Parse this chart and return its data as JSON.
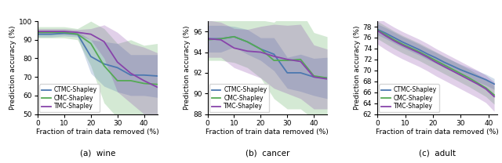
{
  "wine": {
    "x": [
      0,
      5,
      10,
      15,
      20,
      25,
      30,
      35,
      40,
      45
    ],
    "ctmc_mean": [
      93.0,
      93.0,
      93.5,
      93.0,
      81.0,
      77.0,
      75.0,
      71.0,
      71.0,
      70.5
    ],
    "ctmc_lo": [
      91.5,
      91.5,
      92.0,
      91.5,
      72.0,
      65.0,
      62.0,
      60.0,
      60.0,
      59.0
    ],
    "ctmc_hi": [
      94.5,
      94.5,
      95.0,
      94.5,
      90.0,
      89.0,
      88.0,
      82.0,
      82.0,
      82.0
    ],
    "cmc_mean": [
      94.0,
      94.0,
      94.0,
      93.0,
      88.0,
      76.0,
      68.0,
      68.0,
      66.5,
      66.0
    ],
    "cmc_lo": [
      91.0,
      91.0,
      91.0,
      90.0,
      76.0,
      56.0,
      48.0,
      46.0,
      46.0,
      44.0
    ],
    "cmc_hi": [
      97.0,
      97.0,
      97.0,
      96.0,
      100.0,
      96.0,
      88.0,
      90.0,
      87.0,
      88.0
    ],
    "tmc_mean": [
      94.5,
      94.5,
      94.5,
      94.0,
      93.0,
      89.0,
      78.0,
      72.0,
      68.0,
      64.5
    ],
    "tmc_lo": [
      93.0,
      93.0,
      93.0,
      92.5,
      90.0,
      80.0,
      62.0,
      56.0,
      50.0,
      46.0
    ],
    "tmc_hi": [
      96.0,
      96.0,
      96.0,
      95.5,
      96.0,
      98.0,
      94.0,
      88.0,
      86.0,
      83.0
    ],
    "ylabel": "Prediction accuracy (%)",
    "xlabel": "Fraction of train data removed (%)",
    "title": "(a)  wine",
    "xlim": [
      0,
      45
    ],
    "ylim": [
      50,
      100
    ],
    "yticks": [
      50,
      60,
      70,
      80,
      90,
      100
    ],
    "xticks": [
      0,
      10,
      20,
      30,
      40
    ]
  },
  "cancer": {
    "x": [
      0,
      5,
      10,
      15,
      20,
      25,
      30,
      35,
      40,
      45
    ],
    "ctmc_mean": [
      95.3,
      95.3,
      95.5,
      95.0,
      94.3,
      93.8,
      92.0,
      92.0,
      91.6,
      91.5
    ],
    "ctmc_lo": [
      94.0,
      94.0,
      94.5,
      93.8,
      93.2,
      92.2,
      90.5,
      90.2,
      89.8,
      89.5
    ],
    "ctmc_hi": [
      96.6,
      96.6,
      96.5,
      96.2,
      95.4,
      95.4,
      93.5,
      93.8,
      93.4,
      93.5
    ],
    "cmc_mean": [
      95.2,
      95.3,
      95.5,
      95.0,
      94.3,
      93.2,
      93.2,
      93.3,
      91.7,
      91.5
    ],
    "cmc_lo": [
      93.2,
      93.2,
      93.0,
      92.5,
      91.5,
      89.5,
      88.5,
      88.5,
      87.5,
      87.5
    ],
    "cmc_hi": [
      97.2,
      97.4,
      98.0,
      97.5,
      97.1,
      96.9,
      97.9,
      98.1,
      95.9,
      95.5
    ],
    "tmc_mean": [
      95.3,
      95.2,
      94.4,
      94.1,
      94.0,
      93.6,
      93.3,
      93.1,
      91.6,
      91.4
    ],
    "tmc_lo": [
      93.5,
      93.5,
      92.5,
      92.0,
      91.5,
      90.5,
      90.0,
      89.5,
      88.5,
      88.5
    ],
    "tmc_hi": [
      97.1,
      96.9,
      96.3,
      96.2,
      96.5,
      96.7,
      96.6,
      96.7,
      94.7,
      94.3
    ],
    "ylabel": "Prediction accuracy (%)",
    "xlabel": "Fraction of train data removed (%)",
    "title": "(b)  cancer",
    "xlim": [
      0,
      45
    ],
    "ylim": [
      88,
      97
    ],
    "yticks": [
      88,
      90,
      92,
      94,
      96
    ],
    "xticks": [
      0,
      10,
      20,
      30,
      40
    ]
  },
  "adult": {
    "x": [
      0,
      3,
      6,
      9,
      12,
      15,
      18,
      21,
      24,
      27,
      30,
      33,
      36,
      39,
      42
    ],
    "ctmc_mean": [
      77.5,
      76.8,
      76.0,
      75.2,
      74.5,
      73.8,
      73.0,
      72.3,
      71.5,
      70.8,
      70.1,
      69.5,
      68.9,
      68.3,
      67.5
    ],
    "ctmc_lo": [
      76.5,
      75.8,
      75.0,
      74.2,
      73.5,
      72.8,
      72.0,
      71.3,
      70.5,
      69.8,
      69.1,
      68.5,
      67.9,
      67.3,
      66.5
    ],
    "ctmc_hi": [
      78.5,
      77.8,
      77.0,
      76.2,
      75.5,
      74.8,
      74.0,
      73.3,
      72.5,
      71.8,
      71.1,
      70.5,
      69.9,
      69.3,
      68.5
    ],
    "cmc_mean": [
      77.4,
      76.5,
      75.6,
      74.8,
      74.1,
      73.4,
      72.6,
      71.8,
      71.0,
      70.2,
      69.4,
      68.6,
      67.7,
      66.8,
      65.5
    ],
    "cmc_lo": [
      75.8,
      74.9,
      74.0,
      73.2,
      72.5,
      71.8,
      71.0,
      70.2,
      69.4,
      68.6,
      67.8,
      67.0,
      66.1,
      65.2,
      63.8
    ],
    "cmc_hi": [
      79.0,
      78.1,
      77.2,
      76.4,
      75.7,
      75.0,
      74.2,
      73.4,
      72.6,
      71.8,
      71.0,
      70.2,
      69.3,
      68.4,
      67.2
    ],
    "tmc_mean": [
      77.3,
      76.3,
      75.4,
      74.6,
      73.9,
      73.2,
      72.4,
      71.5,
      70.7,
      69.9,
      69.1,
      68.3,
      67.5,
      66.6,
      65.2
    ],
    "tmc_lo": [
      74.8,
      73.8,
      72.9,
      72.1,
      71.4,
      70.7,
      69.9,
      69.0,
      68.2,
      67.4,
      66.6,
      65.8,
      65.0,
      64.1,
      62.5
    ],
    "tmc_hi": [
      79.8,
      78.8,
      77.9,
      77.1,
      76.4,
      75.7,
      74.9,
      74.0,
      73.2,
      72.4,
      71.6,
      70.8,
      70.0,
      69.1,
      67.9
    ],
    "ylabel": "Prediction accuracy (%)",
    "xlabel": "Fraction of train data removed (%)",
    "title": "(c)  adult",
    "xlim": [
      0,
      43
    ],
    "ylim": [
      62,
      79
    ],
    "yticks": [
      62,
      64,
      66,
      68,
      70,
      72,
      74,
      76,
      78
    ],
    "xticks": [
      0,
      10,
      20,
      30,
      40
    ]
  },
  "colors": {
    "ctmc": "#4C78B0",
    "cmc": "#55AA55",
    "tmc": "#8844AA"
  },
  "legend_labels": [
    "CTMC-Shapley",
    "CMC-Shapley",
    "TMC-Shapley"
  ],
  "alpha_fill": 0.25,
  "figsize": [
    6.4,
    2.08
  ],
  "dpi": 100
}
